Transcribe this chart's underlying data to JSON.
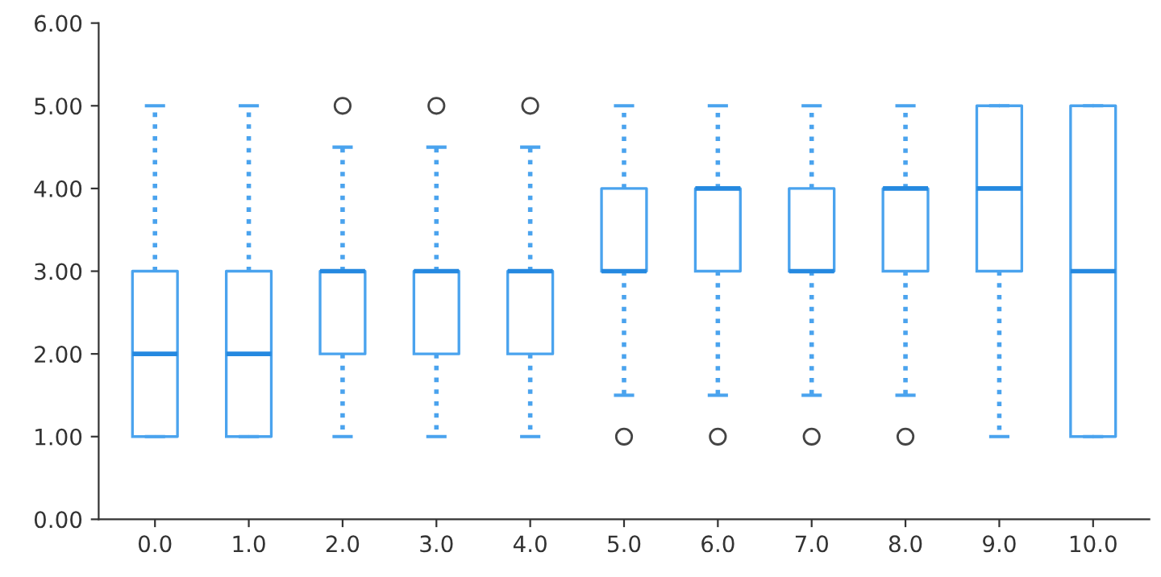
{
  "chart_data": {
    "type": "box",
    "categories": [
      "0.0",
      "1.0",
      "2.0",
      "3.0",
      "4.0",
      "5.0",
      "6.0",
      "7.0",
      "8.0",
      "9.0",
      "10.0"
    ],
    "boxes": [
      {
        "low": 1,
        "q1": 1,
        "median": 2,
        "q3": 3,
        "high": 5
      },
      {
        "low": 1,
        "q1": 1,
        "median": 2,
        "q3": 3,
        "high": 5
      },
      {
        "low": 1,
        "q1": 2,
        "median": 3,
        "q3": 3,
        "high": 4.5,
        "outliers": [
          5
        ]
      },
      {
        "low": 1,
        "q1": 2,
        "median": 3,
        "q3": 3,
        "high": 4.5,
        "outliers": [
          5
        ]
      },
      {
        "low": 1,
        "q1": 2,
        "median": 3,
        "q3": 3,
        "high": 4.5,
        "outliers": [
          5
        ]
      },
      {
        "low": 1.5,
        "q1": 3,
        "median": 3,
        "q3": 4,
        "high": 5,
        "outliers": [
          1
        ]
      },
      {
        "low": 1.5,
        "q1": 3,
        "median": 4,
        "q3": 4,
        "high": 5,
        "outliers": [
          1
        ]
      },
      {
        "low": 1.5,
        "q1": 3,
        "median": 3,
        "q3": 4,
        "high": 5,
        "outliers": [
          1
        ]
      },
      {
        "low": 1.5,
        "q1": 3,
        "median": 4,
        "q3": 4,
        "high": 5,
        "outliers": [
          1
        ]
      },
      {
        "low": 1,
        "q1": 3,
        "median": 4,
        "q3": 5,
        "high": 5
      },
      {
        "low": 1,
        "q1": 1,
        "median": 3,
        "q3": 5,
        "high": 5
      }
    ],
    "color": "#4aa3ee",
    "ylim": [
      0,
      6
    ],
    "yticks": [
      {
        "value": 0,
        "label": "0.00"
      },
      {
        "value": 1,
        "label": "1.00"
      },
      {
        "value": 2,
        "label": "2.00"
      },
      {
        "value": 3,
        "label": "3.00"
      },
      {
        "value": 4,
        "label": "4.00"
      },
      {
        "value": 5,
        "label": "5.00"
      },
      {
        "value": 6,
        "label": "6.00"
      }
    ],
    "line_style": "dotted",
    "grid": false
  }
}
